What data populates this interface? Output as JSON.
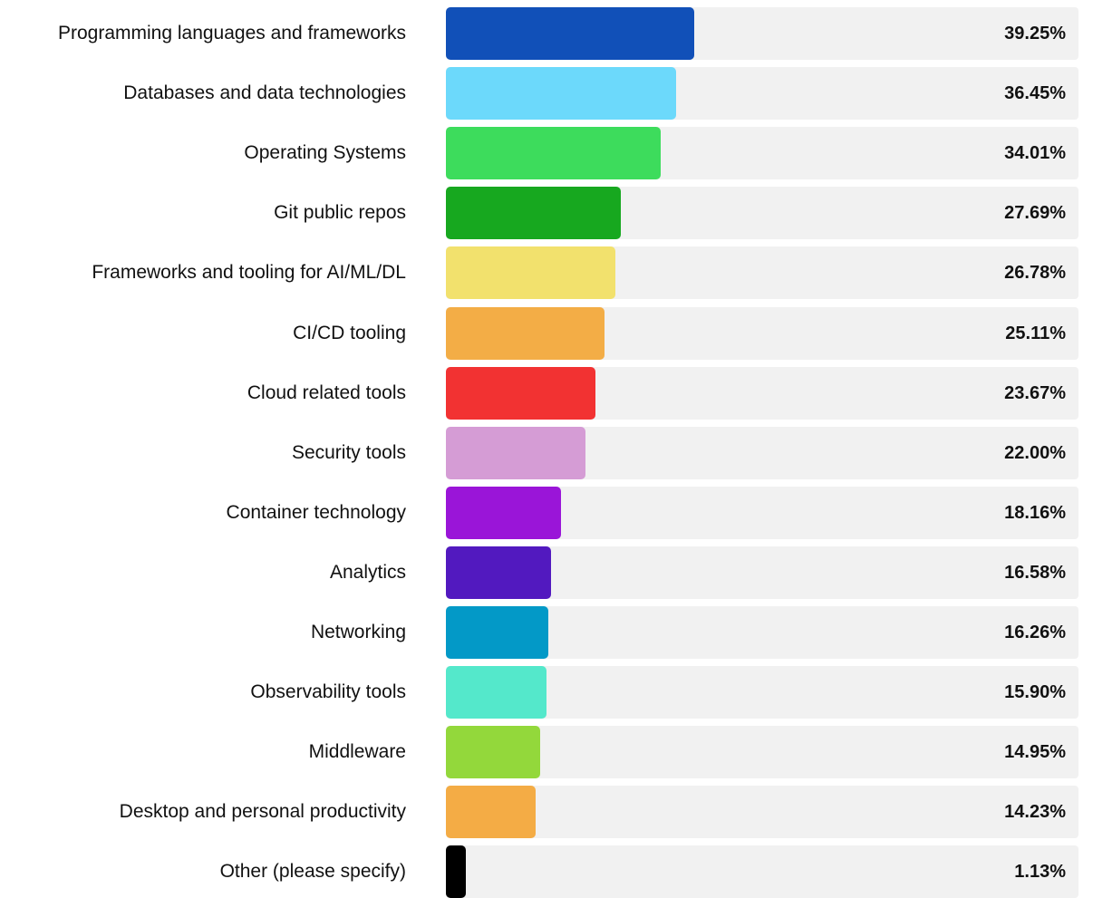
{
  "chart_data": {
    "type": "bar",
    "orientation": "horizontal",
    "categories": [
      "Programming languages and frameworks",
      "Databases and data technologies",
      "Operating Systems",
      "Git public repos",
      "Frameworks and tooling for AI/ML/DL",
      "CI/CD tooling",
      "Cloud related tools",
      "Security tools",
      "Container technology",
      "Analytics",
      "Networking",
      "Observability tools",
      "Middleware",
      "Desktop and personal productivity",
      "Other (please specify)"
    ],
    "values": [
      39.25,
      36.45,
      34.01,
      27.69,
      26.78,
      25.11,
      23.67,
      22.0,
      18.16,
      16.58,
      16.26,
      15.9,
      14.95,
      14.23,
      1.13
    ],
    "value_labels": [
      "39.25%",
      "36.45%",
      "34.01%",
      "27.69%",
      "26.78%",
      "25.11%",
      "23.67%",
      "22.00%",
      "18.16%",
      "16.58%",
      "16.26%",
      "15.90%",
      "14.95%",
      "14.23%",
      "1.13%"
    ],
    "colors": [
      "#1150b8",
      "#6cd9fb",
      "#3ddc5c",
      "#17a81f",
      "#f2e16d",
      "#f3ad46",
      "#f23232",
      "#d59cd5",
      "#9a15d8",
      "#5219bf",
      "#0399c7",
      "#54e8cb",
      "#93d83b",
      "#f4ac45",
      "#000000"
    ],
    "xlim": [
      0,
      100
    ],
    "grid": false,
    "legend": "none"
  }
}
